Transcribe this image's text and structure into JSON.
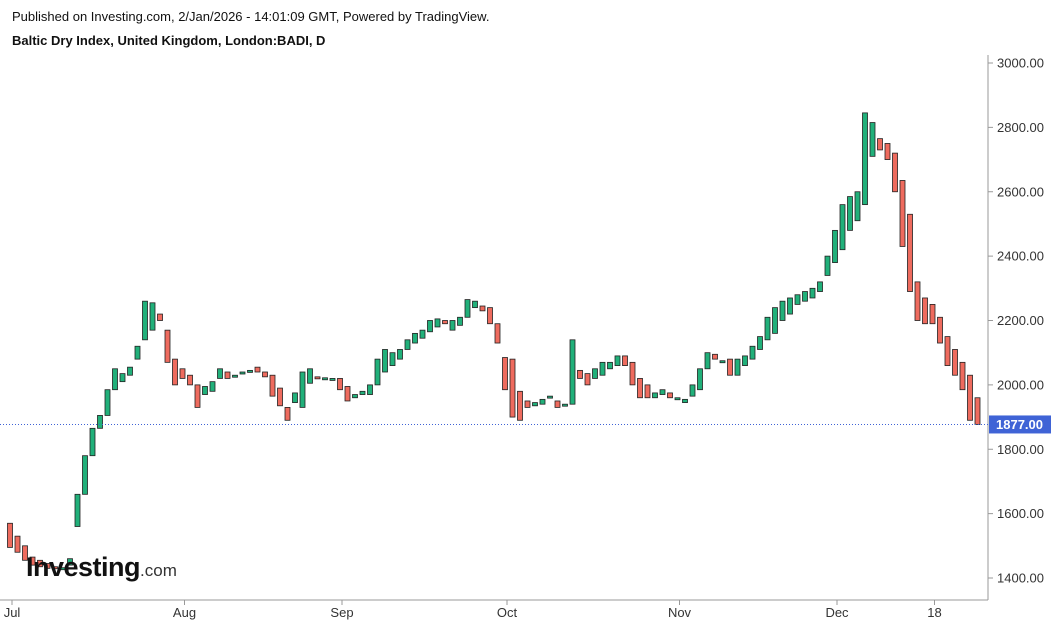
{
  "header": {
    "published": "Published on Investing.com, 2/Jan/2026 - 14:01:09 GMT, Powered by TradingView.",
    "symbol": "Baltic Dry Index, United Kingdom, London:BADI, D"
  },
  "logo": {
    "brand": "Investing",
    "suffix": ".com"
  },
  "colors": {
    "up": "#21b07a",
    "down": "#ee6b5e",
    "last_line": "#3f63d6",
    "last_label_bg": "#3f63d6",
    "axis": "#999999"
  },
  "chart_data": {
    "type": "candlestick",
    "title": "Baltic Dry Index, United Kingdom, London:BADI, D",
    "ylim": [
      1350,
      3050
    ],
    "y_ticks": [
      3000,
      2800,
      2600,
      2400,
      2200,
      2000,
      1800,
      1600,
      1400
    ],
    "y_tick_labels": [
      "3000.00",
      "2800.00",
      "2600.00",
      "2400.00",
      "2200.00",
      "2000.00",
      "1800.00",
      "1600.00",
      "1400.00"
    ],
    "x_tick_labels": [
      {
        "label": "Jul",
        "index": 0
      },
      {
        "label": "Aug",
        "index": 23
      },
      {
        "label": "Sep",
        "index": 44
      },
      {
        "label": "Oct",
        "index": 66
      },
      {
        "label": "Nov",
        "index": 89
      },
      {
        "label": "Dec",
        "index": 110
      },
      {
        "label": "18",
        "index": 123
      }
    ],
    "last_value": 1877,
    "last_value_label": "1877.00",
    "candles": [
      {
        "o": 1570,
        "c": 1495
      },
      {
        "o": 1530,
        "c": 1480
      },
      {
        "o": 1500,
        "c": 1455
      },
      {
        "o": 1465,
        "c": 1440
      },
      {
        "o": 1455,
        "c": 1435
      },
      {
        "o": 1445,
        "c": 1430
      },
      {
        "o": 1435,
        "c": 1430
      },
      {
        "o": 1430,
        "c": 1432
      },
      {
        "o": 1440,
        "c": 1460
      },
      {
        "o": 1560,
        "c": 1660
      },
      {
        "o": 1660,
        "c": 1780
      },
      {
        "o": 1780,
        "c": 1865
      },
      {
        "o": 1865,
        "c": 1905
      },
      {
        "o": 1905,
        "c": 1985
      },
      {
        "o": 1985,
        "c": 2050
      },
      {
        "o": 2010,
        "c": 2035
      },
      {
        "o": 2030,
        "c": 2055
      },
      {
        "o": 2080,
        "c": 2120
      },
      {
        "o": 2140,
        "c": 2260
      },
      {
        "o": 2170,
        "c": 2255
      },
      {
        "o": 2220,
        "c": 2200
      },
      {
        "o": 2170,
        "c": 2070
      },
      {
        "o": 2080,
        "c": 2000
      },
      {
        "o": 2050,
        "c": 2020
      },
      {
        "o": 2030,
        "c": 2000
      },
      {
        "o": 2000,
        "c": 1930
      },
      {
        "o": 1970,
        "c": 1995
      },
      {
        "o": 1980,
        "c": 2010
      },
      {
        "o": 2020,
        "c": 2050
      },
      {
        "o": 2040,
        "c": 2020
      },
      {
        "o": 2025,
        "c": 2030
      },
      {
        "o": 2035,
        "c": 2040
      },
      {
        "o": 2040,
        "c": 2045
      },
      {
        "o": 2055,
        "c": 2040
      },
      {
        "o": 2040,
        "c": 2025
      },
      {
        "o": 2030,
        "c": 1965
      },
      {
        "o": 1990,
        "c": 1935
      },
      {
        "o": 1930,
        "c": 1890
      },
      {
        "o": 1945,
        "c": 1975
      },
      {
        "o": 1930,
        "c": 2040
      },
      {
        "o": 2005,
        "c": 2050
      },
      {
        "o": 2025,
        "c": 2022
      },
      {
        "o": 2020,
        "c": 2022
      },
      {
        "o": 2018,
        "c": 2020
      },
      {
        "o": 2020,
        "c": 1985
      },
      {
        "o": 1995,
        "c": 1950
      },
      {
        "o": 1960,
        "c": 1970
      },
      {
        "o": 1970,
        "c": 1980
      },
      {
        "o": 1970,
        "c": 2000
      },
      {
        "o": 2000,
        "c": 2080
      },
      {
        "o": 2040,
        "c": 2110
      },
      {
        "o": 2060,
        "c": 2100
      },
      {
        "o": 2080,
        "c": 2110
      },
      {
        "o": 2110,
        "c": 2140
      },
      {
        "o": 2130,
        "c": 2160
      },
      {
        "o": 2145,
        "c": 2170
      },
      {
        "o": 2165,
        "c": 2200
      },
      {
        "o": 2180,
        "c": 2205
      },
      {
        "o": 2200,
        "c": 2190
      },
      {
        "o": 2170,
        "c": 2200
      },
      {
        "o": 2185,
        "c": 2210
      },
      {
        "o": 2210,
        "c": 2265
      },
      {
        "o": 2240,
        "c": 2260
      },
      {
        "o": 2245,
        "c": 2230
      },
      {
        "o": 2240,
        "c": 2190
      },
      {
        "o": 2190,
        "c": 2130
      },
      {
        "o": 2085,
        "c": 1985
      },
      {
        "o": 2080,
        "c": 1900
      },
      {
        "o": 1980,
        "c": 1890
      },
      {
        "o": 1950,
        "c": 1930
      },
      {
        "o": 1935,
        "c": 1945
      },
      {
        "o": 1940,
        "c": 1955
      },
      {
        "o": 1960,
        "c": 1965
      },
      {
        "o": 1950,
        "c": 1930
      },
      {
        "o": 1935,
        "c": 1940
      },
      {
        "o": 1940,
        "c": 2140
      },
      {
        "o": 2045,
        "c": 2020
      },
      {
        "o": 2035,
        "c": 2000
      },
      {
        "o": 2020,
        "c": 2050
      },
      {
        "o": 2030,
        "c": 2070
      },
      {
        "o": 2050,
        "c": 2070
      },
      {
        "o": 2060,
        "c": 2090
      },
      {
        "o": 2090,
        "c": 2060
      },
      {
        "o": 2070,
        "c": 2000
      },
      {
        "o": 2020,
        "c": 1960
      },
      {
        "o": 2000,
        "c": 1960
      },
      {
        "o": 1960,
        "c": 1975
      },
      {
        "o": 1970,
        "c": 1985
      },
      {
        "o": 1975,
        "c": 1960
      },
      {
        "o": 1960,
        "c": 1960
      },
      {
        "o": 1945,
        "c": 1955
      },
      {
        "o": 1965,
        "c": 2000
      },
      {
        "o": 1985,
        "c": 2050
      },
      {
        "o": 2050,
        "c": 2100
      },
      {
        "o": 2095,
        "c": 2080
      },
      {
        "o": 2075,
        "c": 2075
      },
      {
        "o": 2080,
        "c": 2030
      },
      {
        "o": 2030,
        "c": 2080
      },
      {
        "o": 2060,
        "c": 2090
      },
      {
        "o": 2080,
        "c": 2120
      },
      {
        "o": 2110,
        "c": 2150
      },
      {
        "o": 2140,
        "c": 2210
      },
      {
        "o": 2160,
        "c": 2240
      },
      {
        "o": 2200,
        "c": 2260
      },
      {
        "o": 2220,
        "c": 2270
      },
      {
        "o": 2250,
        "c": 2280
      },
      {
        "o": 2260,
        "c": 2290
      },
      {
        "o": 2270,
        "c": 2300
      },
      {
        "o": 2290,
        "c": 2320
      },
      {
        "o": 2340,
        "c": 2400
      },
      {
        "o": 2380,
        "c": 2480
      },
      {
        "o": 2420,
        "c": 2560
      },
      {
        "o": 2480,
        "c": 2585
      },
      {
        "o": 2510,
        "c": 2600
      },
      {
        "o": 2560,
        "c": 2845
      },
      {
        "o": 2710,
        "c": 2815
      },
      {
        "o": 2765,
        "c": 2730
      },
      {
        "o": 2750,
        "c": 2700
      },
      {
        "o": 2720,
        "c": 2600
      },
      {
        "o": 2635,
        "c": 2430
      },
      {
        "o": 2530,
        "c": 2290
      },
      {
        "o": 2320,
        "c": 2200
      },
      {
        "o": 2270,
        "c": 2190
      },
      {
        "o": 2250,
        "c": 2190
      },
      {
        "o": 2210,
        "c": 2130
      },
      {
        "o": 2150,
        "c": 2060
      },
      {
        "o": 2110,
        "c": 2030
      },
      {
        "o": 2070,
        "c": 1985
      },
      {
        "o": 2030,
        "c": 1890
      },
      {
        "o": 1960,
        "c": 1877
      }
    ]
  }
}
